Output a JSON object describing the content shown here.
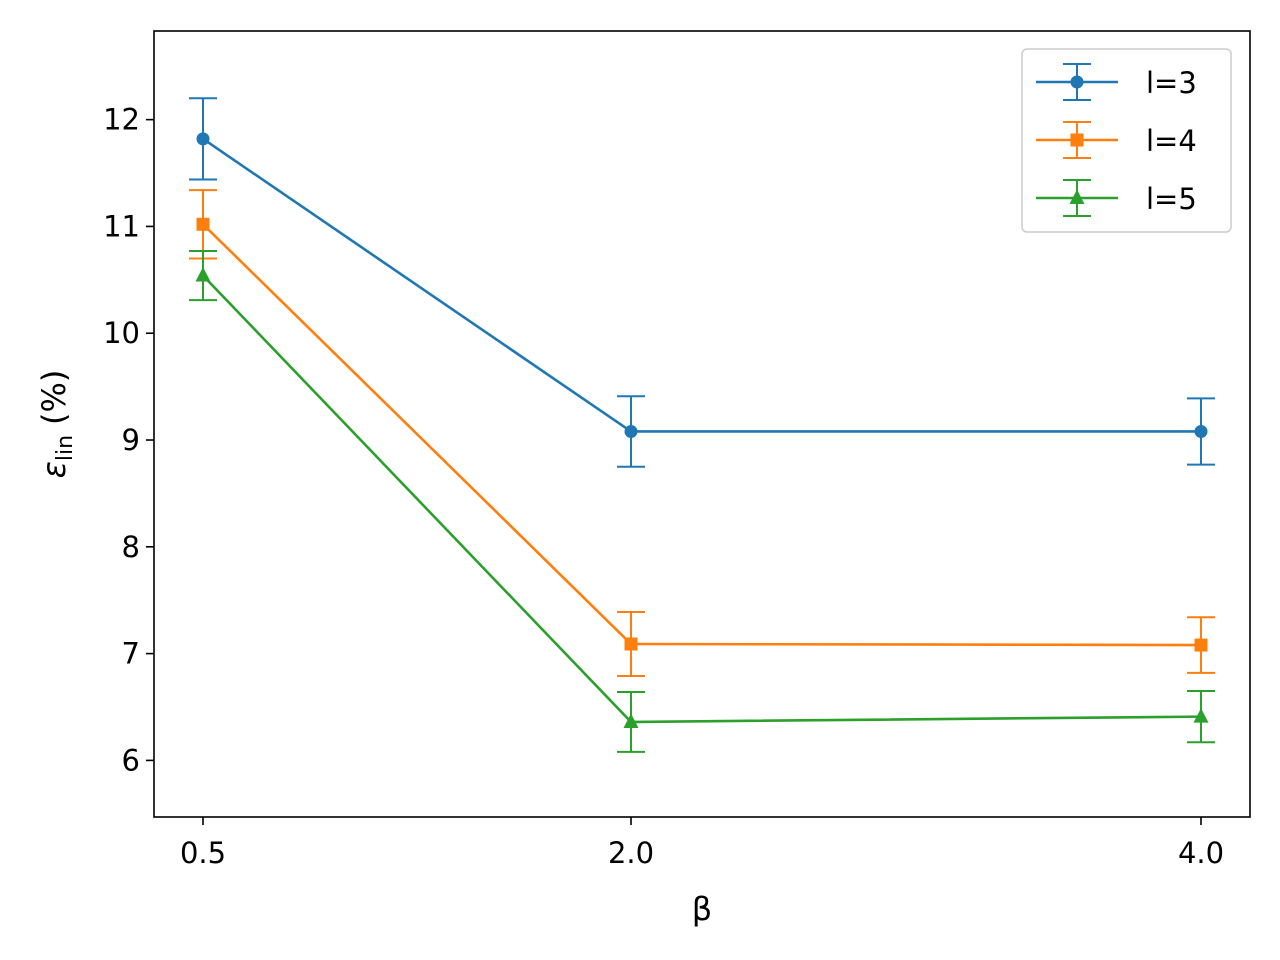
{
  "chart_data": {
    "type": "line",
    "x": [
      "0.5",
      "2.0",
      "4.0"
    ],
    "xlabel": "β",
    "ylabel_symbol": "ε",
    "ylabel_subscript": "lin",
    "ylabel_unit": "(%)",
    "ylim": [
      5.47,
      12.83
    ],
    "yticks": [
      6,
      7,
      8,
      9,
      10,
      11,
      12
    ],
    "grid": false,
    "legend_position": "top-right",
    "error_bars": true,
    "series": [
      {
        "name": "l=3",
        "color": "#1f77b4",
        "marker": "circle",
        "values": [
          11.82,
          9.08,
          9.08
        ],
        "errors": [
          0.38,
          0.33,
          0.31
        ]
      },
      {
        "name": "l=4",
        "color": "#ff7f0e",
        "marker": "square",
        "values": [
          11.02,
          7.09,
          7.08
        ],
        "errors": [
          0.32,
          0.3,
          0.26
        ]
      },
      {
        "name": "l=5",
        "color": "#2ca02c",
        "marker": "triangle-up",
        "values": [
          10.54,
          6.36,
          6.41
        ],
        "errors": [
          0.23,
          0.28,
          0.24
        ]
      }
    ]
  }
}
